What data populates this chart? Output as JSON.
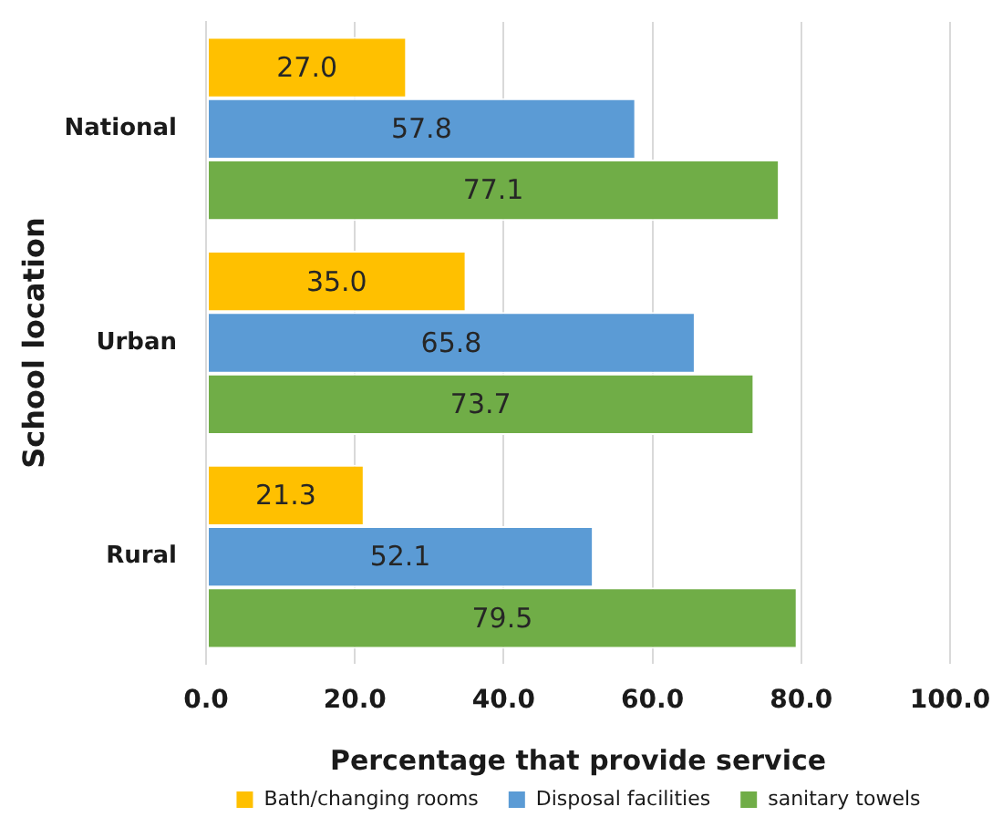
{
  "chart_data": {
    "type": "bar",
    "orientation": "horizontal",
    "xlabel": "Percentage that provide service",
    "ylabel": "School location",
    "categories": [
      "National",
      "Urban",
      "Rural"
    ],
    "series": [
      {
        "name": "Bath/changing rooms",
        "color": "#ffc000",
        "values": [
          27.0,
          35.0,
          21.3
        ],
        "value_labels": [
          "27.0",
          "35.0",
          "21.3"
        ]
      },
      {
        "name": "Disposal facilities",
        "color": "#5b9bd5",
        "values": [
          57.8,
          65.8,
          52.1
        ],
        "value_labels": [
          "57.8",
          "65.8",
          "52.1"
        ]
      },
      {
        "name": "sanitary towels",
        "color": "#70ad47",
        "values": [
          77.1,
          73.7,
          79.5
        ],
        "value_labels": [
          "77.1",
          "73.7",
          "79.5"
        ]
      }
    ],
    "xlim": [
      0,
      100
    ],
    "xticks": [
      {
        "value": 0,
        "label": "0.0"
      },
      {
        "value": 20,
        "label": "20.0"
      },
      {
        "value": 40,
        "label": "40.0"
      },
      {
        "value": 60,
        "label": "60.0"
      },
      {
        "value": 80,
        "label": "80.0"
      },
      {
        "value": 100,
        "label": "100.0"
      }
    ],
    "grid": "x",
    "legend": "bottom"
  }
}
